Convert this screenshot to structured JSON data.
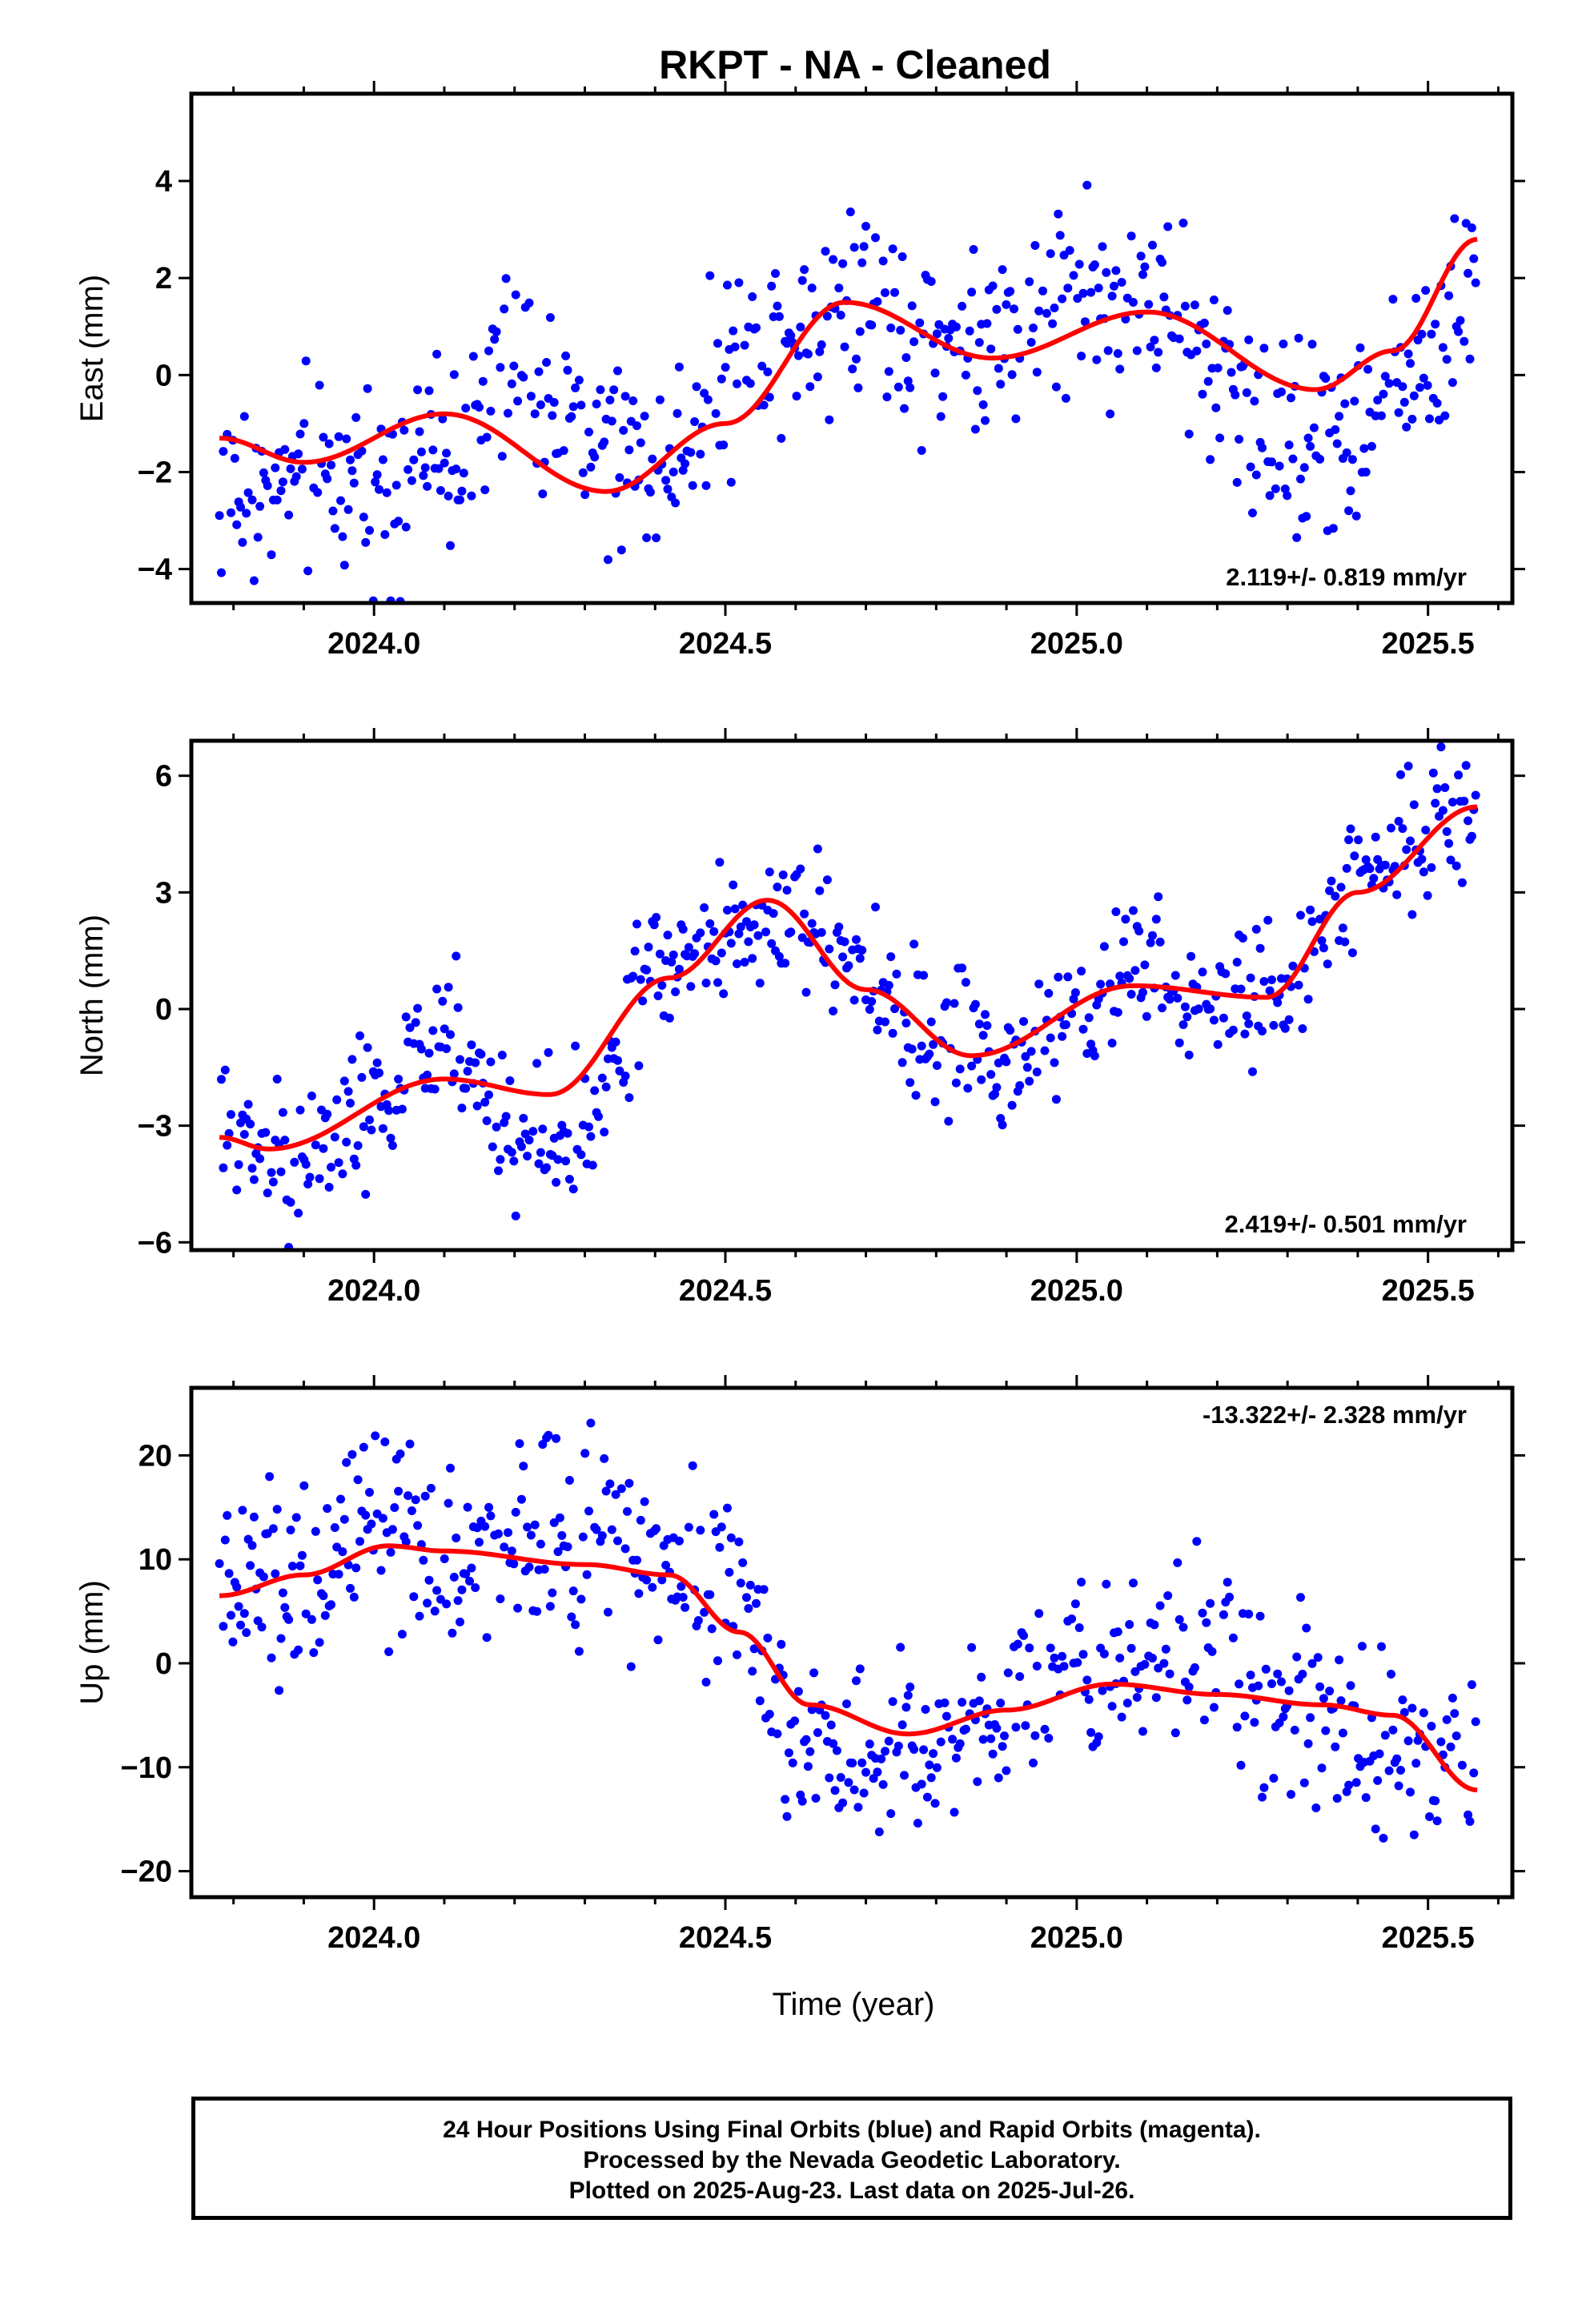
{
  "chart_data": {
    "type": "scatter",
    "title": "RKPT  - NA - Cleaned",
    "xlabel": "Time (year)",
    "xlim": [
      2023.74,
      2025.62
    ],
    "x_ticks": [
      2024.0,
      2024.5,
      2025.0,
      2025.5
    ],
    "x_tick_labels": [
      "2024.0",
      "2024.5",
      "2025.0",
      "2025.5"
    ],
    "point_color": "#0000ff",
    "fit_color": "#ff0000",
    "panels": [
      {
        "ylabel": "East (mm)",
        "ylim": [
          -4.7,
          5.8
        ],
        "y_ticks": [
          -4,
          -2,
          0,
          2,
          4
        ],
        "y_tick_labels": [
          "−4",
          "−2",
          "0",
          "2",
          "4"
        ],
        "rate_label": "2.119+/- 0.819 mm/yr",
        "rate_position": "bottom-right",
        "fit": {
          "x": [
            2023.78,
            2023.9,
            2024.1,
            2024.33,
            2024.5,
            2024.67,
            2024.88,
            2025.1,
            2025.34,
            2025.45,
            2025.57
          ],
          "y": [
            -1.3,
            -1.8,
            -0.8,
            -2.4,
            -1.0,
            1.5,
            0.35,
            1.3,
            -0.3,
            0.5,
            2.8
          ]
        },
        "cluster_centers": {
          "x": [
            2023.8,
            2023.9,
            2024.0,
            2024.1,
            2024.2,
            2024.3,
            2024.4,
            2024.5,
            2024.6,
            2024.7,
            2024.8,
            2024.9,
            2025.0,
            2025.1,
            2025.2,
            2025.3,
            2025.4,
            2025.5,
            2025.57
          ],
          "y": [
            -2.5,
            -2.3,
            -2.0,
            -1.6,
            0.0,
            -1.2,
            -2.0,
            0.0,
            1.2,
            1.8,
            0.6,
            0.8,
            1.8,
            1.5,
            0.0,
            -1.2,
            -1.2,
            0.5,
            2.0
          ]
        },
        "spread": 1.0
      },
      {
        "ylabel": "North (mm)",
        "ylim": [
          -6.2,
          6.9
        ],
        "y_ticks": [
          -6,
          -3,
          0,
          3,
          6
        ],
        "y_tick_labels": [
          "−6",
          "−3",
          "0",
          "3",
          "6"
        ],
        "rate_label": "2.419+/- 0.501 mm/yr",
        "rate_position": "bottom-right",
        "fit": {
          "x": [
            2023.78,
            2023.85,
            2024.1,
            2024.25,
            2024.42,
            2024.56,
            2024.7,
            2024.85,
            2025.08,
            2025.27,
            2025.4,
            2025.57
          ],
          "y": [
            -3.3,
            -3.6,
            -1.8,
            -2.2,
            0.8,
            2.8,
            0.5,
            -1.2,
            0.6,
            0.3,
            3.0,
            5.2
          ]
        },
        "cluster_centers": {
          "x": [
            2023.8,
            2023.9,
            2024.0,
            2024.1,
            2024.2,
            2024.3,
            2024.4,
            2024.5,
            2024.6,
            2024.7,
            2024.8,
            2024.9,
            2025.0,
            2025.1,
            2025.2,
            2025.3,
            2025.4,
            2025.5,
            2025.57
          ],
          "y": [
            -3.0,
            -4.0,
            -2.5,
            -0.5,
            -3.5,
            -3.0,
            1.0,
            2.0,
            2.5,
            0.5,
            -1.0,
            -1.5,
            0.0,
            1.0,
            0.0,
            0.5,
            3.5,
            4.8,
            5.0
          ]
        },
        "spread": 0.9
      },
      {
        "ylabel": "Up (mm)",
        "ylim": [
          -22.5,
          26.5
        ],
        "y_ticks": [
          -20,
          -10,
          0,
          10,
          20
        ],
        "y_tick_labels": [
          "−20",
          "−10",
          "0",
          "10",
          "20"
        ],
        "rate_label": "-13.322+/- 2.328 mm/yr",
        "rate_position": "top-right",
        "fit": {
          "x": [
            2023.78,
            2023.9,
            2024.02,
            2024.1,
            2024.3,
            2024.42,
            2024.52,
            2024.62,
            2024.76,
            2024.9,
            2025.05,
            2025.2,
            2025.35,
            2025.45,
            2025.57
          ],
          "y": [
            6.5,
            8.5,
            11.3,
            10.8,
            9.5,
            8.5,
            3.0,
            -4.0,
            -6.8,
            -4.5,
            -2.0,
            -3.0,
            -4.0,
            -5.0,
            -12.2
          ]
        },
        "cluster_centers": {
          "x": [
            2023.8,
            2023.9,
            2024.0,
            2024.1,
            2024.2,
            2024.3,
            2024.4,
            2024.5,
            2024.6,
            2024.7,
            2024.8,
            2024.9,
            2025.0,
            2025.1,
            2025.2,
            2025.3,
            2025.4,
            2025.5,
            2025.57
          ],
          "y": [
            7,
            9,
            12,
            10,
            12,
            13,
            10,
            8,
            -7,
            -8,
            -7,
            -3,
            0,
            0,
            0,
            -5,
            -8,
            -8,
            -8
          ]
        },
        "spread": 4.5
      }
    ]
  },
  "footer": {
    "line1": "24 Hour Positions Using Final Orbits (blue) and Rapid Orbits (magenta).",
    "line2": "Processed by the Nevada Geodetic Laboratory.",
    "line3": "Plotted on 2025-Aug-23. Last data on 2025-Jul-26."
  }
}
